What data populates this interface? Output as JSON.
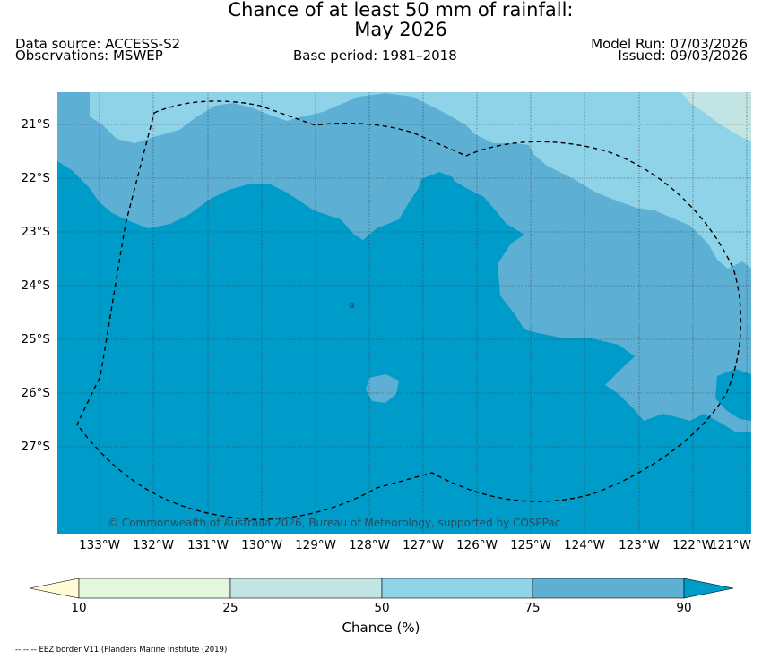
{
  "title": {
    "line1": "Chance of at least 50 mm of rainfall:",
    "line2": "May 2026"
  },
  "header": {
    "data_source": "Data source: ACCESS-S2",
    "observations": "Observations: MSWEP",
    "base_period": "Base period: 1981–2018",
    "model_run": "Model Run: 07/03/2026",
    "issued": "Issued: 09/03/2026"
  },
  "map": {
    "copyright": "© Commonwealth of Australia 2026, Bureau of Meteorology, supported by COSPPac",
    "lat_labels": [
      "21°S",
      "22°S",
      "23°S",
      "24°S",
      "25°S",
      "26°S",
      "27°S"
    ],
    "lon_labels": [
      "133°W",
      "132°W",
      "131°W",
      "130°W",
      "129°W",
      "128°W",
      "127°W",
      "126°W",
      "125°W",
      "124°W",
      "123°W",
      "122°W",
      "121°W"
    ],
    "border_style": "dashed black line"
  },
  "colorbar": {
    "ticks": [
      "10",
      "25",
      "50",
      "75",
      "90"
    ],
    "label": "Chance (%)",
    "colors": {
      "below_10": "#fffbd5",
      "10_25": "#e3f7dc",
      "25_50": "#c2e4e2",
      "50_75": "#8fd3e9",
      "75_90": "#5db0d4",
      "above_90": "#009cc9"
    }
  },
  "footnote": "-- -- -- EEZ border V11 (Flanders Marine Institute (2019)"
}
